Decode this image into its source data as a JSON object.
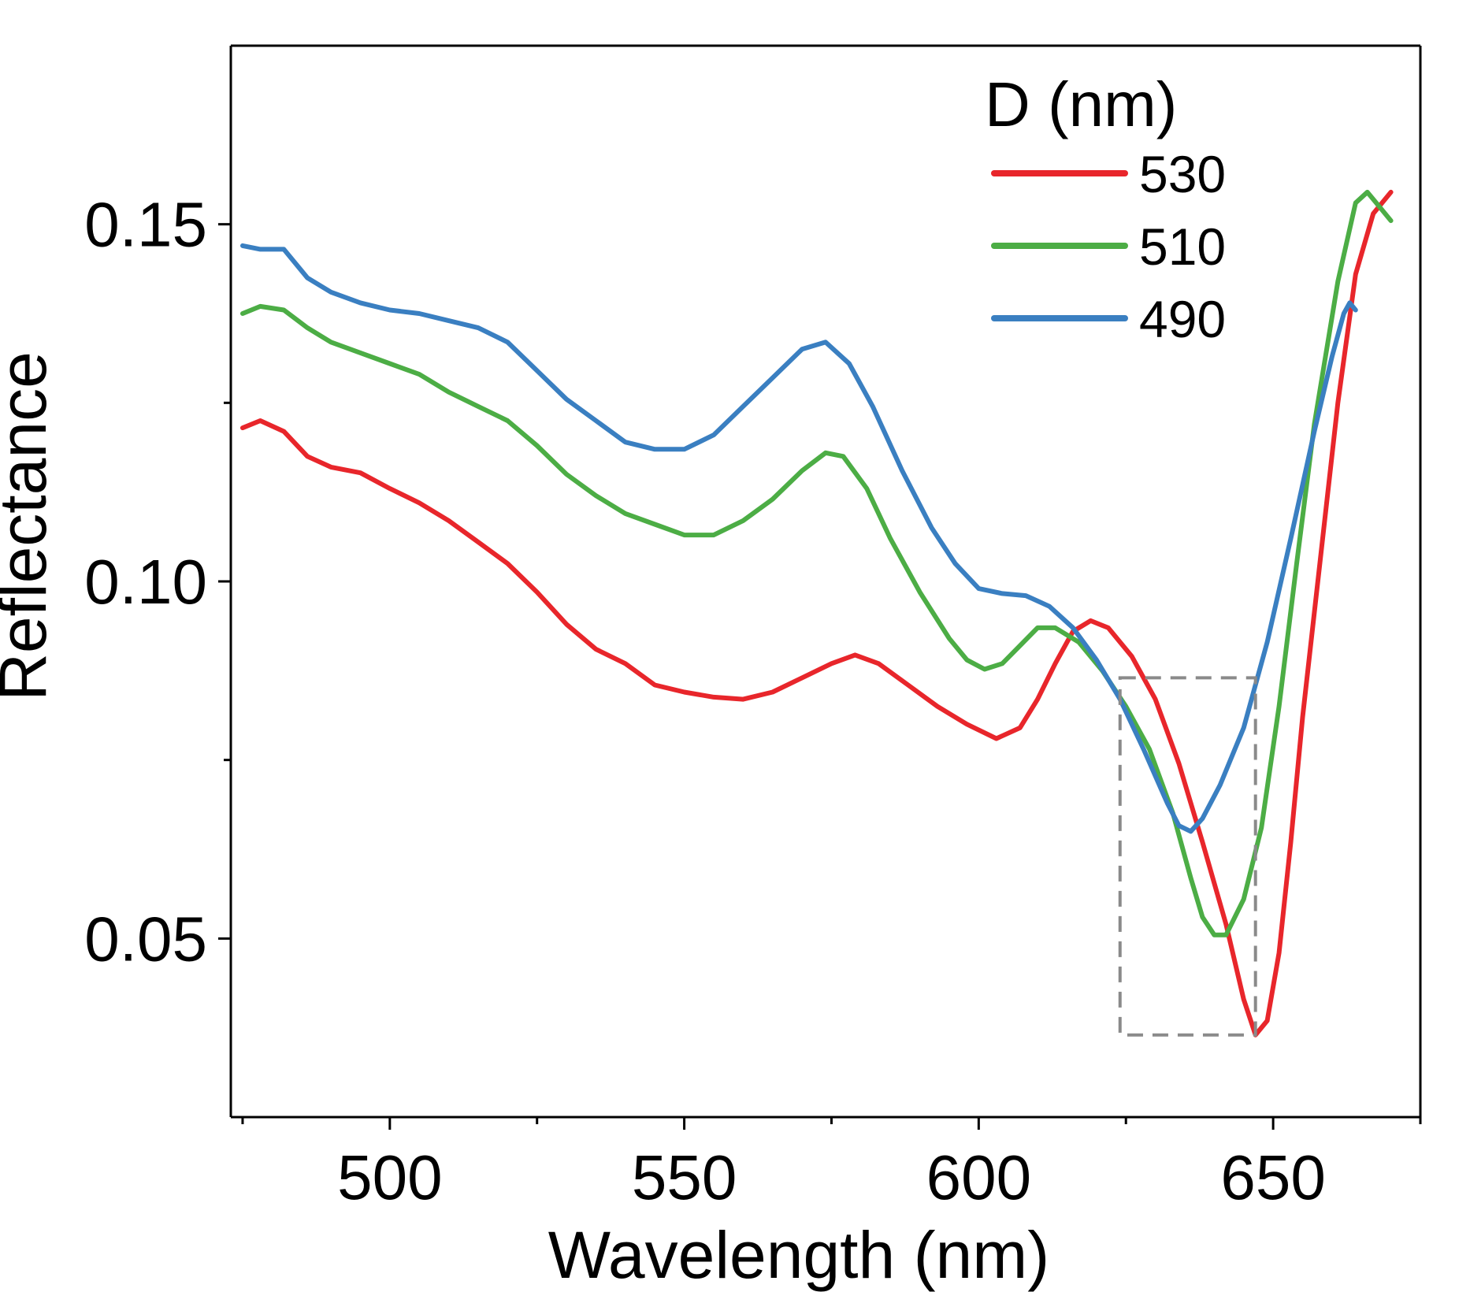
{
  "chart_data": {
    "type": "line",
    "title": "",
    "xlabel": "Wavelength (nm)",
    "ylabel": "Reflectance",
    "xlim": [
      473,
      675
    ],
    "ylim": [
      0.025,
      0.175
    ],
    "x_major_ticks": [
      500,
      550,
      600,
      650
    ],
    "x_minor_ticks": [
      475,
      525,
      575,
      625,
      675
    ],
    "y_major_ticks": [
      0.05,
      0.1,
      0.15
    ],
    "y_minor_ticks": [
      0.075,
      0.125
    ],
    "x_tick_labels": [
      "500",
      "550",
      "600",
      "650"
    ],
    "y_tick_labels": [
      "0.05",
      "0.10",
      "0.15"
    ],
    "grid": false,
    "legend": {
      "title": "D (nm)",
      "placement": "top-right",
      "entries": [
        "530",
        "510",
        "490"
      ]
    },
    "highlight_box": {
      "x": [
        624,
        647
      ],
      "y": [
        0.0365,
        0.0865
      ]
    },
    "series": [
      {
        "name": "530",
        "color": "#e8262b",
        "points": [
          [
            475,
            0.1215
          ],
          [
            478,
            0.1225
          ],
          [
            482,
            0.121
          ],
          [
            486,
            0.1175
          ],
          [
            490,
            0.116
          ],
          [
            495,
            0.1152
          ],
          [
            500,
            0.113
          ],
          [
            505,
            0.111
          ],
          [
            510,
            0.1085
          ],
          [
            515,
            0.1055
          ],
          [
            520,
            0.1025
          ],
          [
            525,
            0.0985
          ],
          [
            530,
            0.094
          ],
          [
            535,
            0.0905
          ],
          [
            540,
            0.0885
          ],
          [
            545,
            0.0855
          ],
          [
            550,
            0.0845
          ],
          [
            555,
            0.0838
          ],
          [
            560,
            0.0835
          ],
          [
            565,
            0.0845
          ],
          [
            570,
            0.0865
          ],
          [
            575,
            0.0885
          ],
          [
            579,
            0.0897
          ],
          [
            583,
            0.0885
          ],
          [
            588,
            0.0855
          ],
          [
            593,
            0.0825
          ],
          [
            598,
            0.08
          ],
          [
            603,
            0.078
          ],
          [
            607,
            0.0795
          ],
          [
            610,
            0.0835
          ],
          [
            613,
            0.0885
          ],
          [
            616,
            0.093
          ],
          [
            619,
            0.0945
          ],
          [
            622,
            0.0935
          ],
          [
            626,
            0.0895
          ],
          [
            630,
            0.0835
          ],
          [
            634,
            0.0745
          ],
          [
            638,
            0.0635
          ],
          [
            642,
            0.052
          ],
          [
            645,
            0.0415
          ],
          [
            647,
            0.0365
          ],
          [
            649,
            0.0385
          ],
          [
            651,
            0.048
          ],
          [
            653,
            0.0635
          ],
          [
            655,
            0.081
          ],
          [
            658,
            0.103
          ],
          [
            661,
            0.125
          ],
          [
            664,
            0.143
          ],
          [
            667,
            0.1515
          ],
          [
            670,
            0.1545
          ]
        ]
      },
      {
        "name": "510",
        "color": "#4cad45",
        "points": [
          [
            475,
            0.1375
          ],
          [
            478,
            0.1385
          ],
          [
            482,
            0.138
          ],
          [
            486,
            0.1355
          ],
          [
            490,
            0.1335
          ],
          [
            495,
            0.132
          ],
          [
            500,
            0.1305
          ],
          [
            505,
            0.129
          ],
          [
            510,
            0.1265
          ],
          [
            515,
            0.1245
          ],
          [
            520,
            0.1225
          ],
          [
            525,
            0.119
          ],
          [
            530,
            0.115
          ],
          [
            535,
            0.112
          ],
          [
            540,
            0.1095
          ],
          [
            545,
            0.108
          ],
          [
            550,
            0.1065
          ],
          [
            555,
            0.1065
          ],
          [
            560,
            0.1085
          ],
          [
            565,
            0.1115
          ],
          [
            570,
            0.1155
          ],
          [
            574,
            0.118
          ],
          [
            577,
            0.1175
          ],
          [
            581,
            0.113
          ],
          [
            585,
            0.106
          ],
          [
            590,
            0.0985
          ],
          [
            595,
            0.092
          ],
          [
            598,
            0.089
          ],
          [
            601,
            0.0877
          ],
          [
            604,
            0.0885
          ],
          [
            607,
            0.091
          ],
          [
            610,
            0.0935
          ],
          [
            613,
            0.0935
          ],
          [
            617,
            0.0915
          ],
          [
            621,
            0.0875
          ],
          [
            625,
            0.0825
          ],
          [
            629,
            0.0765
          ],
          [
            633,
            0.0675
          ],
          [
            636,
            0.0585
          ],
          [
            638,
            0.053
          ],
          [
            640,
            0.0505
          ],
          [
            642,
            0.0505
          ],
          [
            645,
            0.0555
          ],
          [
            648,
            0.0655
          ],
          [
            651,
            0.0825
          ],
          [
            654,
            0.1025
          ],
          [
            657,
            0.122
          ],
          [
            661,
            0.142
          ],
          [
            664,
            0.153
          ],
          [
            666,
            0.1545
          ],
          [
            668,
            0.1525
          ],
          [
            670,
            0.1505
          ]
        ]
      },
      {
        "name": "490",
        "color": "#3a7fc1",
        "points": [
          [
            475,
            0.147
          ],
          [
            478,
            0.1465
          ],
          [
            482,
            0.1465
          ],
          [
            486,
            0.1425
          ],
          [
            490,
            0.1405
          ],
          [
            495,
            0.139
          ],
          [
            500,
            0.138
          ],
          [
            505,
            0.1375
          ],
          [
            510,
            0.1365
          ],
          [
            515,
            0.1355
          ],
          [
            520,
            0.1335
          ],
          [
            525,
            0.1295
          ],
          [
            530,
            0.1255
          ],
          [
            535,
            0.1225
          ],
          [
            540,
            0.1195
          ],
          [
            545,
            0.1185
          ],
          [
            550,
            0.1185
          ],
          [
            555,
            0.1205
          ],
          [
            560,
            0.1245
          ],
          [
            565,
            0.1285
          ],
          [
            570,
            0.1325
          ],
          [
            574,
            0.1335
          ],
          [
            578,
            0.1305
          ],
          [
            582,
            0.1245
          ],
          [
            587,
            0.1155
          ],
          [
            592,
            0.1075
          ],
          [
            596,
            0.1025
          ],
          [
            600,
            0.099
          ],
          [
            604,
            0.0983
          ],
          [
            608,
            0.098
          ],
          [
            612,
            0.0965
          ],
          [
            616,
            0.0935
          ],
          [
            620,
            0.089
          ],
          [
            624,
            0.0835
          ],
          [
            628,
            0.0765
          ],
          [
            632,
            0.069
          ],
          [
            634,
            0.0658
          ],
          [
            636,
            0.065
          ],
          [
            638,
            0.0668
          ],
          [
            641,
            0.0715
          ],
          [
            645,
            0.0795
          ],
          [
            649,
            0.0915
          ],
          [
            653,
            0.106
          ],
          [
            657,
            0.121
          ],
          [
            660,
            0.1315
          ],
          [
            662,
            0.1375
          ],
          [
            663,
            0.139
          ],
          [
            664,
            0.138
          ]
        ]
      }
    ]
  }
}
